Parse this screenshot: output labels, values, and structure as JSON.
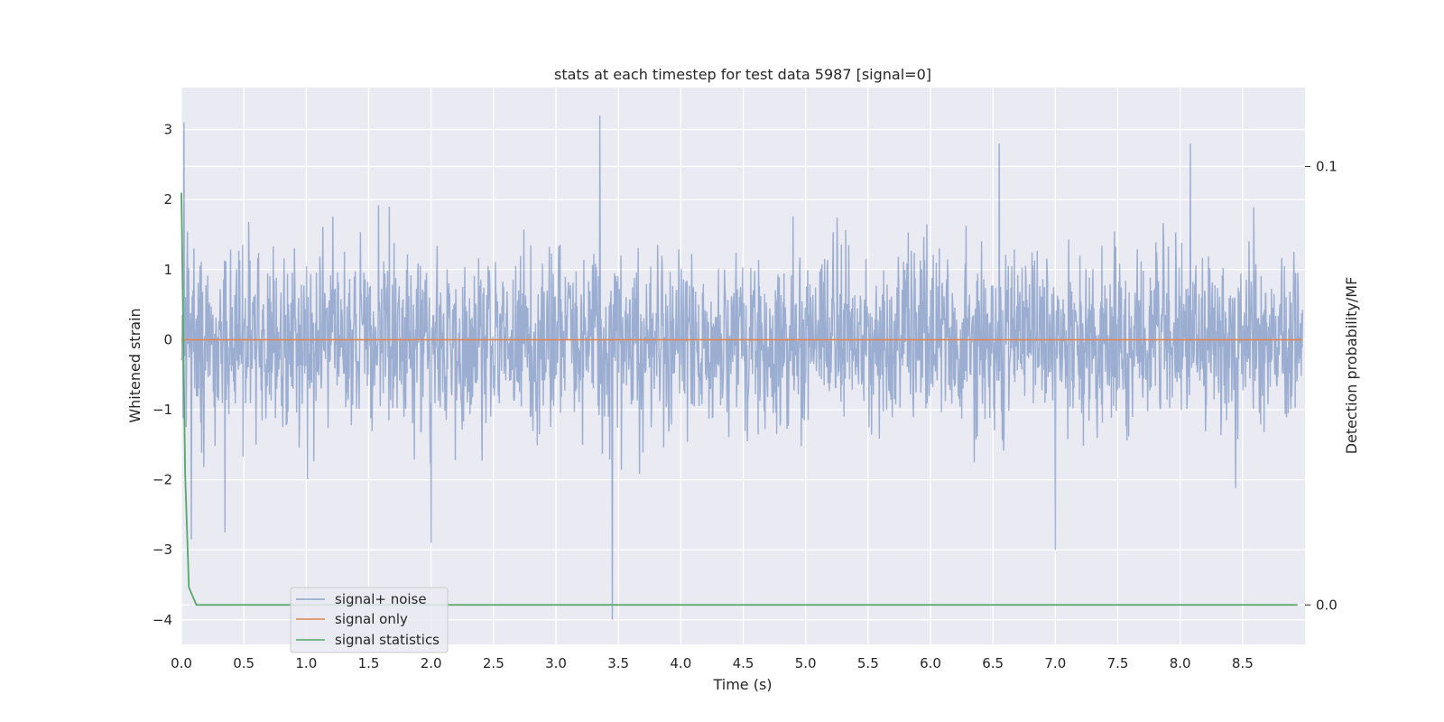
{
  "chart_data": {
    "type": "line",
    "title": "stats at each timestep for test data 5987 [signal=0]",
    "xlabel": "Time (s)",
    "ylabel": "Whitened strain",
    "y2label": "Detection probability/MF",
    "xlim": [
      0,
      9.0
    ],
    "ylim": [
      -4.35,
      3.6
    ],
    "y2lim": [
      -0.009,
      0.118
    ],
    "xticks": [
      "0.0",
      "0.5",
      "1.0",
      "1.5",
      "2.0",
      "2.5",
      "3.0",
      "3.5",
      "4.0",
      "4.5",
      "5.0",
      "5.5",
      "6.0",
      "6.5",
      "7.0",
      "7.5",
      "8.0",
      "8.5"
    ],
    "yticks": [
      "3",
      "2",
      "1",
      "0",
      "−1",
      "−2",
      "−3",
      "−4"
    ],
    "y2ticks": [
      "0.1",
      "0.0"
    ],
    "grid": true,
    "legend_position": "lower-left",
    "series": [
      {
        "name": "signal+ noise",
        "axis": "left",
        "color": "#4c72b0",
        "description": "dense whitened noise around 0, peak 3.2 near t=3.35 s, min -4.0 near t=3.45 s",
        "seed": 5987,
        "sigma": 0.62,
        "peaks": [
          [
            0.02,
            3.1
          ],
          [
            0.08,
            -2.85
          ],
          [
            3.35,
            3.2
          ],
          [
            3.45,
            -4.0
          ],
          [
            6.55,
            2.8
          ],
          [
            8.08,
            2.8
          ],
          [
            7.0,
            -3.0
          ],
          [
            0.35,
            -2.75
          ],
          [
            2.0,
            -2.9
          ]
        ]
      },
      {
        "name": "signal only",
        "axis": "left",
        "color": "#dd8452",
        "x": [
          0,
          8.98
        ],
        "y": [
          0,
          0
        ]
      },
      {
        "name": "signal statistics",
        "axis": "right",
        "color": "#55a868",
        "x": [
          0.0,
          0.03,
          0.06,
          0.12,
          8.94
        ],
        "y": [
          0.094,
          0.03,
          0.004,
          0.0,
          0.0
        ]
      }
    ]
  }
}
